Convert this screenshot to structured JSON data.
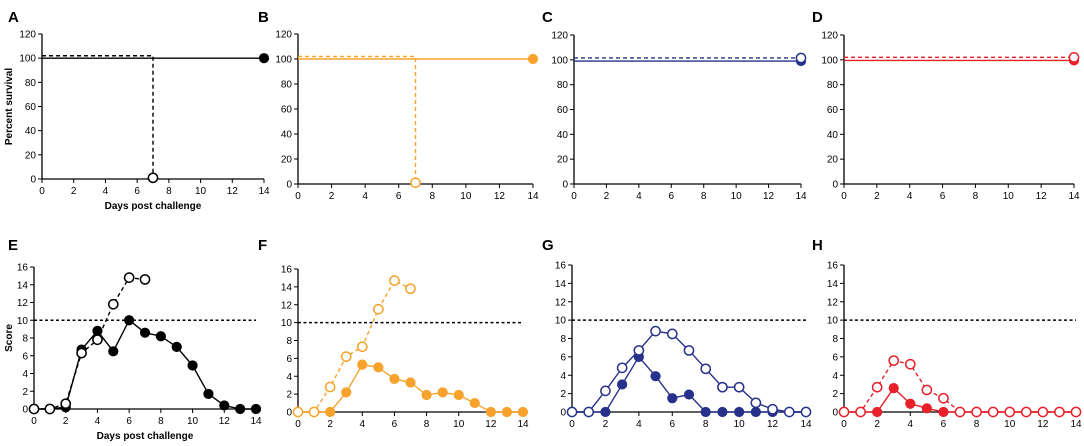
{
  "chart_data": [
    {
      "panel": "A",
      "type": "line",
      "color": "#000000",
      "xlim": [
        0,
        14
      ],
      "ylim": [
        0,
        120
      ],
      "xticks": [
        "0",
        "2",
        "4",
        "6",
        "8",
        "10",
        "12",
        "14"
      ],
      "yticks": [
        "0",
        "20",
        "40",
        "60",
        "80",
        "100",
        "120"
      ],
      "xlabel": "Days post challenge",
      "ylabel": "Percent survival",
      "ref": null,
      "series": [
        {
          "name": "solid",
          "style": "solid",
          "marker": "filled",
          "step": true,
          "x": [
            0,
            14
          ],
          "y": [
            100,
            100
          ],
          "markers": [
            14
          ]
        },
        {
          "name": "dashed",
          "style": "dashed",
          "marker": "open",
          "step": true,
          "x": [
            0,
            7,
            7
          ],
          "y": [
            102,
            102,
            1
          ],
          "markers": [
            7
          ]
        }
      ]
    },
    {
      "panel": "B",
      "type": "line",
      "color": "#f7a22c",
      "xlim": [
        0,
        14
      ],
      "ylim": [
        0,
        120
      ],
      "xticks": [
        "0",
        "2",
        "4",
        "6",
        "8",
        "10",
        "12",
        "14"
      ],
      "yticks": [
        "0",
        "20",
        "40",
        "60",
        "80",
        "100",
        "120"
      ],
      "xlabel": "",
      "ylabel": "",
      "ref": null,
      "series": [
        {
          "name": "solid",
          "style": "solid",
          "marker": "filled",
          "step": true,
          "x": [
            0,
            14
          ],
          "y": [
            100,
            100
          ],
          "markers": [
            14
          ]
        },
        {
          "name": "dashed",
          "style": "dashed",
          "marker": "open",
          "step": true,
          "x": [
            0,
            7,
            7
          ],
          "y": [
            102,
            102,
            1
          ],
          "markers": [
            7
          ]
        }
      ]
    },
    {
      "panel": "C",
      "type": "line",
      "color": "#27318b",
      "xlim": [
        0,
        14
      ],
      "ylim": [
        0,
        120
      ],
      "xticks": [
        "0",
        "2",
        "4",
        "6",
        "8",
        "10",
        "12",
        "14"
      ],
      "yticks": [
        "0",
        "20",
        "40",
        "60",
        "80",
        "100",
        "120"
      ],
      "xlabel": "",
      "ylabel": "",
      "ref": null,
      "series": [
        {
          "name": "solid",
          "style": "solid",
          "marker": "filled",
          "step": true,
          "x": [
            0,
            14
          ],
          "y": [
            99,
            99
          ],
          "markers": [
            14
          ]
        },
        {
          "name": "dashed",
          "style": "dashed",
          "marker": "open",
          "step": true,
          "x": [
            0,
            14
          ],
          "y": [
            101.5,
            101.5
          ],
          "markers": [
            14
          ]
        }
      ]
    },
    {
      "panel": "D",
      "type": "line",
      "color": "#e8202a",
      "xlim": [
        0,
        14
      ],
      "ylim": [
        0,
        120
      ],
      "xticks": [
        "0",
        "2",
        "4",
        "6",
        "8",
        "10",
        "12",
        "14"
      ],
      "yticks": [
        "0",
        "20",
        "40",
        "60",
        "80",
        "100",
        "120"
      ],
      "xlabel": "",
      "ylabel": "",
      "ref": null,
      "series": [
        {
          "name": "solid",
          "style": "solid",
          "marker": "filled",
          "step": true,
          "x": [
            0,
            14
          ],
          "y": [
            99.5,
            99.5
          ],
          "markers": [
            14
          ]
        },
        {
          "name": "dashed",
          "style": "dashed",
          "marker": "open",
          "step": true,
          "x": [
            0,
            14
          ],
          "y": [
            102,
            102
          ],
          "markers": [
            14
          ]
        }
      ]
    },
    {
      "panel": "E",
      "type": "line",
      "color": "#000000",
      "xlim": [
        0,
        14
      ],
      "ylim": [
        0,
        16
      ],
      "xticks": [
        "0",
        "2",
        "4",
        "6",
        "8",
        "10",
        "12",
        "14"
      ],
      "yticks": [
        "0",
        "2",
        "4",
        "6",
        "8",
        "10",
        "12",
        "14",
        "16"
      ],
      "xlabel": "Days post challenge",
      "ylabel": "Score",
      "ref": 10,
      "series": [
        {
          "name": "solid",
          "style": "solid",
          "marker": "filled",
          "step": false,
          "x": [
            0,
            1,
            2,
            3,
            4,
            5,
            6,
            7,
            8,
            9,
            10,
            11,
            12,
            13,
            14
          ],
          "y": [
            0,
            0,
            0.2,
            6.7,
            8.8,
            6.5,
            10,
            8.6,
            8.2,
            7,
            4.9,
            1.7,
            0.4,
            0,
            0
          ]
        },
        {
          "name": "dashed",
          "style": "dashed",
          "marker": "open",
          "step": false,
          "x": [
            0,
            1,
            2,
            3,
            4,
            5,
            6,
            7
          ],
          "y": [
            0,
            0,
            0.6,
            6.3,
            7.8,
            11.8,
            14.8,
            14.6
          ]
        }
      ]
    },
    {
      "panel": "F",
      "type": "line",
      "color": "#f7a22c",
      "xlim": [
        0,
        14
      ],
      "ylim": [
        0,
        16
      ],
      "xticks": [
        "0",
        "2",
        "4",
        "6",
        "8",
        "10",
        "12",
        "14"
      ],
      "yticks": [
        "0",
        "2",
        "4",
        "6",
        "8",
        "10",
        "12",
        "14",
        "16"
      ],
      "xlabel": "",
      "ylabel": "",
      "ref": 10,
      "series": [
        {
          "name": "solid",
          "style": "solid",
          "marker": "filled",
          "step": false,
          "x": [
            0,
            1,
            2,
            3,
            4,
            5,
            6,
            7,
            8,
            9,
            10,
            11,
            12,
            13,
            14
          ],
          "y": [
            0,
            0,
            0,
            2.2,
            5.3,
            5,
            3.7,
            3.3,
            1.9,
            2.2,
            1.9,
            1,
            0,
            0,
            0
          ]
        },
        {
          "name": "dashed",
          "style": "dashed",
          "marker": "open",
          "step": false,
          "x": [
            0,
            1,
            2,
            3,
            4,
            5,
            6,
            7
          ],
          "y": [
            0,
            0,
            2.8,
            6.2,
            7.3,
            11.5,
            14.7,
            13.8
          ]
        }
      ]
    },
    {
      "panel": "G",
      "type": "line",
      "color": "#27318b",
      "xlim": [
        0,
        14
      ],
      "ylim": [
        0,
        16
      ],
      "xticks": [
        "0",
        "2",
        "4",
        "6",
        "8",
        "10",
        "12",
        "14"
      ],
      "yticks": [
        "0",
        "2",
        "4",
        "6",
        "8",
        "10",
        "12",
        "14",
        "16"
      ],
      "xlabel": "",
      "ylabel": "",
      "ref": 10,
      "series": [
        {
          "name": "solid",
          "style": "solid",
          "marker": "filled",
          "step": false,
          "x": [
            0,
            1,
            2,
            3,
            4,
            5,
            6,
            7,
            8,
            9,
            10,
            11,
            12,
            13,
            14
          ],
          "y": [
            0,
            0,
            0,
            3,
            6,
            3.9,
            1.5,
            1.9,
            0,
            0,
            0,
            0,
            0,
            0,
            0
          ]
        },
        {
          "name": "open",
          "style": "solid",
          "marker": "open",
          "step": false,
          "x": [
            0,
            1,
            2,
            3,
            4,
            5,
            6,
            7,
            8,
            9,
            10,
            11,
            12,
            13,
            14
          ],
          "y": [
            0,
            0,
            2.3,
            4.8,
            6.7,
            8.8,
            8.5,
            6.7,
            4.7,
            2.7,
            2.7,
            1,
            0.3,
            0,
            0
          ]
        }
      ]
    },
    {
      "panel": "H",
      "type": "line",
      "color": "#e8202a",
      "xlim": [
        0,
        14
      ],
      "ylim": [
        0,
        16
      ],
      "xticks": [
        "0",
        "2",
        "4",
        "6",
        "8",
        "10",
        "12",
        "14"
      ],
      "yticks": [
        "0",
        "2",
        "4",
        "6",
        "8",
        "10",
        "12",
        "14",
        "16"
      ],
      "xlabel": "",
      "ylabel": "",
      "ref": 10,
      "series": [
        {
          "name": "solid",
          "style": "solid",
          "marker": "filled",
          "step": false,
          "x": [
            0,
            1,
            2,
            3,
            4,
            5,
            6,
            7,
            8,
            9,
            10,
            11,
            12,
            13,
            14
          ],
          "y": [
            0,
            0,
            0,
            2.6,
            0.9,
            0.4,
            0,
            0,
            0,
            0,
            0,
            0,
            0,
            0,
            0
          ]
        },
        {
          "name": "dashed",
          "style": "dashed",
          "marker": "open",
          "step": false,
          "x": [
            0,
            1,
            2,
            3,
            4,
            5,
            6,
            7,
            8,
            9,
            10,
            11,
            12,
            13,
            14
          ],
          "y": [
            0,
            0,
            2.7,
            5.6,
            5.2,
            2.4,
            1.5,
            0,
            0,
            0,
            0,
            0,
            0,
            0,
            0
          ]
        }
      ]
    }
  ]
}
